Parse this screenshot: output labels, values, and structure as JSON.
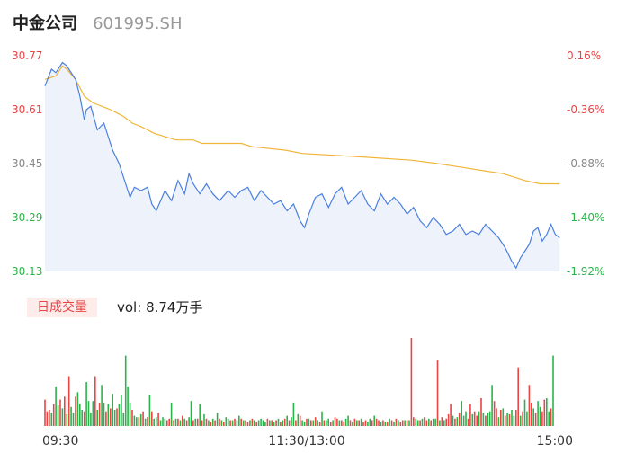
{
  "header": {
    "name": "中金公司",
    "code": "601995.SH"
  },
  "volume_panel": {
    "period_tab": "日成交量",
    "vol_label": "vol:",
    "vol_value": "8.74万手"
  },
  "colors": {
    "price_line": "#4a7fe0",
    "avg_line": "#f0b63a",
    "up": "#e84545",
    "down": "#2bb34a",
    "neutral": "#888888",
    "area": "#eef3fb"
  },
  "chart_data": [
    {
      "type": "line",
      "title": "",
      "y_ticks_left": [
        "30.77",
        "30.61",
        "30.45",
        "30.29",
        "30.13"
      ],
      "y_ticks_right": [
        "0.16%",
        "-0.36%",
        "-0.88%",
        "-1.40%",
        "-1.92%"
      ],
      "ylim": [
        30.13,
        30.77
      ],
      "x_ticks": [
        "09:30",
        "11:30/13:00",
        "15:00"
      ],
      "total_minutes": 241,
      "series": [
        {
          "key": "price",
          "points": [
            [
              0,
              30.68
            ],
            [
              3,
              30.73
            ],
            [
              5,
              30.72
            ],
            [
              8,
              30.75
            ],
            [
              10,
              30.74
            ],
            [
              12,
              30.72
            ],
            [
              14,
              30.7
            ],
            [
              16,
              30.65
            ],
            [
              18,
              30.58
            ],
            [
              19,
              30.61
            ],
            [
              21,
              30.62
            ],
            [
              24,
              30.55
            ],
            [
              27,
              30.57
            ],
            [
              29,
              30.53
            ],
            [
              31,
              30.49
            ],
            [
              34,
              30.45
            ],
            [
              37,
              30.39
            ],
            [
              39,
              30.35
            ],
            [
              41,
              30.38
            ],
            [
              44,
              30.37
            ],
            [
              47,
              30.38
            ],
            [
              49,
              30.33
            ],
            [
              51,
              30.31
            ],
            [
              55,
              30.37
            ],
            [
              58,
              30.34
            ],
            [
              61,
              30.4
            ],
            [
              64,
              30.36
            ],
            [
              66,
              30.42
            ],
            [
              68,
              30.39
            ],
            [
              71,
              30.36
            ],
            [
              74,
              30.39
            ],
            [
              77,
              30.36
            ],
            [
              80,
              30.34
            ],
            [
              84,
              30.37
            ],
            [
              87,
              30.35
            ],
            [
              90,
              30.37
            ],
            [
              93,
              30.38
            ],
            [
              96,
              30.34
            ],
            [
              99,
              30.37
            ],
            [
              102,
              30.35
            ],
            [
              105,
              30.33
            ],
            [
              108,
              30.34
            ],
            [
              111,
              30.31
            ],
            [
              114,
              30.33
            ],
            [
              117,
              30.28
            ],
            [
              119,
              30.26
            ],
            [
              121,
              30.3
            ],
            [
              124,
              30.35
            ],
            [
              127,
              30.36
            ],
            [
              130,
              30.32
            ],
            [
              133,
              30.36
            ],
            [
              136,
              30.38
            ],
            [
              139,
              30.33
            ],
            [
              142,
              30.35
            ],
            [
              145,
              30.37
            ],
            [
              148,
              30.33
            ],
            [
              151,
              30.31
            ],
            [
              154,
              30.36
            ],
            [
              157,
              30.33
            ],
            [
              160,
              30.35
            ],
            [
              163,
              30.33
            ],
            [
              166,
              30.3
            ],
            [
              169,
              30.32
            ],
            [
              172,
              30.28
            ],
            [
              175,
              30.26
            ],
            [
              178,
              30.29
            ],
            [
              181,
              30.27
            ],
            [
              184,
              30.24
            ],
            [
              187,
              30.25
            ],
            [
              190,
              30.27
            ],
            [
              193,
              30.24
            ],
            [
              196,
              30.25
            ],
            [
              199,
              30.24
            ],
            [
              202,
              30.27
            ],
            [
              205,
              30.25
            ],
            [
              208,
              30.23
            ],
            [
              211,
              30.2
            ],
            [
              214,
              30.16
            ],
            [
              216,
              30.14
            ],
            [
              218,
              30.17
            ],
            [
              220,
              30.19
            ],
            [
              222,
              30.21
            ],
            [
              224,
              30.25
            ],
            [
              226,
              30.26
            ],
            [
              228,
              30.22
            ],
            [
              230,
              30.24
            ],
            [
              232,
              30.27
            ],
            [
              234,
              30.24
            ],
            [
              236,
              30.23
            ]
          ]
        },
        {
          "key": "avg",
          "points": [
            [
              0,
              30.7
            ],
            [
              5,
              30.71
            ],
            [
              8,
              30.74
            ],
            [
              10,
              30.73
            ],
            [
              14,
              30.7
            ],
            [
              18,
              30.65
            ],
            [
              22,
              30.63
            ],
            [
              26,
              30.62
            ],
            [
              30,
              30.61
            ],
            [
              33,
              30.6
            ],
            [
              36,
              30.59
            ],
            [
              40,
              30.57
            ],
            [
              44,
              30.56
            ],
            [
              50,
              30.54
            ],
            [
              60,
              30.52
            ],
            [
              68,
              30.52
            ],
            [
              72,
              30.51
            ],
            [
              90,
              30.51
            ],
            [
              95,
              30.5
            ],
            [
              110,
              30.49
            ],
            [
              118,
              30.48
            ],
            [
              145,
              30.47
            ],
            [
              168,
              30.46
            ],
            [
              180,
              30.45
            ],
            [
              190,
              30.44
            ],
            [
              200,
              30.43
            ],
            [
              210,
              30.42
            ],
            [
              220,
              30.4
            ],
            [
              227,
              30.39
            ],
            [
              236,
              30.39
            ]
          ]
        }
      ]
    },
    {
      "type": "bar",
      "title": "",
      "minutes": [
        0,
        1,
        2,
        3,
        4,
        5,
        6,
        7,
        8,
        9,
        10,
        11,
        12,
        13,
        14,
        15,
        16,
        17,
        18,
        19,
        20,
        21,
        22,
        23,
        24,
        25,
        26,
        27,
        28,
        29,
        30,
        31,
        32,
        33,
        34,
        35,
        36,
        37,
        38,
        39,
        40,
        41,
        42,
        43,
        44,
        45,
        46,
        47,
        48,
        49,
        50,
        51,
        52,
        53,
        54,
        55,
        56,
        57,
        58,
        59,
        60,
        61,
        62,
        63,
        64,
        65,
        66,
        67,
        68,
        69,
        70,
        71,
        72,
        73,
        74,
        75,
        76,
        77,
        78,
        79,
        80,
        81,
        82,
        83,
        84,
        85,
        86,
        87,
        88,
        89,
        90,
        91,
        92,
        93,
        94,
        95,
        96,
        97,
        98,
        99,
        100,
        101,
        102,
        103,
        104,
        105,
        106,
        107,
        108,
        109,
        110,
        111,
        112,
        113,
        114,
        115,
        116,
        117,
        118,
        119,
        120,
        121,
        122,
        123,
        124,
        125,
        126,
        127,
        128,
        129,
        130,
        131,
        132,
        133,
        134,
        135,
        136,
        137,
        138,
        139,
        140,
        141,
        142,
        143,
        144,
        145,
        146,
        147,
        148,
        149,
        150,
        151,
        152,
        153,
        154,
        155,
        156,
        157,
        158,
        159,
        160,
        161,
        162,
        163,
        164,
        165,
        166,
        167,
        168,
        169,
        170,
        171,
        172,
        173,
        174,
        175,
        176,
        177,
        178,
        179,
        180,
        181,
        182,
        183,
        184,
        185,
        186,
        187,
        188,
        189,
        190,
        191,
        192,
        193,
        194,
        195,
        196,
        197,
        198,
        199,
        200,
        201,
        202,
        203,
        204,
        205,
        206,
        207,
        208,
        209,
        210,
        211,
        212,
        213,
        214,
        215,
        216,
        217,
        218,
        219,
        220,
        221,
        222,
        223,
        224,
        225,
        226,
        227,
        228,
        229,
        230,
        231,
        232,
        233,
        234,
        235,
        236
      ],
      "values": [
        36,
        20,
        22,
        18,
        30,
        54,
        28,
        36,
        24,
        40,
        16,
        68,
        26,
        18,
        40,
        46,
        30,
        22,
        20,
        60,
        34,
        18,
        34,
        68,
        22,
        32,
        56,
        32,
        20,
        30,
        24,
        44,
        22,
        24,
        30,
        42,
        18,
        96,
        54,
        32,
        22,
        14,
        12,
        12,
        16,
        20,
        10,
        12,
        42,
        20,
        10,
        12,
        18,
        8,
        12,
        10,
        8,
        10,
        32,
        8,
        10,
        10,
        8,
        14,
        10,
        8,
        12,
        34,
        8,
        10,
        10,
        30,
        8,
        16,
        10,
        8,
        6,
        10,
        8,
        18,
        10,
        8,
        6,
        12,
        10,
        8,
        8,
        10,
        8,
        14,
        10,
        8,
        8,
        6,
        8,
        10,
        8,
        6,
        8,
        10,
        8,
        6,
        10,
        8,
        8,
        6,
        8,
        10,
        6,
        8,
        10,
        14,
        8,
        12,
        32,
        8,
        16,
        14,
        8,
        6,
        10,
        10,
        8,
        8,
        12,
        8,
        6,
        20,
        8,
        8,
        10,
        6,
        8,
        12,
        10,
        8,
        8,
        6,
        10,
        14,
        8,
        6,
        10,
        8,
        8,
        10,
        6,
        8,
        6,
        10,
        8,
        14,
        10,
        8,
        6,
        8,
        6,
        6,
        10,
        8,
        6,
        10,
        8,
        6,
        8,
        8,
        8,
        8,
        120,
        12,
        10,
        8,
        8,
        10,
        12,
        8,
        10,
        8,
        10,
        10,
        90,
        8,
        12,
        8,
        10,
        16,
        30,
        14,
        10,
        12,
        18,
        34,
        14,
        20,
        10,
        30,
        16,
        20,
        14,
        20,
        38,
        18,
        14,
        18,
        20,
        56,
        34,
        24,
        12,
        22,
        24,
        14,
        18,
        16,
        22,
        14,
        22,
        80,
        14,
        20,
        36,
        20,
        56,
        32,
        24,
        18,
        34,
        26,
        20,
        36,
        38,
        20,
        24,
        96
      ],
      "colors": [
        "r",
        "r",
        "r",
        "g",
        "r",
        "g",
        "g",
        "r",
        "g",
        "r",
        "g",
        "r",
        "g",
        "g",
        "r",
        "g",
        "g",
        "g",
        "r",
        "g",
        "g",
        "g",
        "g",
        "r",
        "g",
        "r",
        "g",
        "g",
        "r",
        "g",
        "r",
        "g",
        "g",
        "r",
        "g",
        "g",
        "g",
        "g",
        "g",
        "g",
        "r",
        "g",
        "g",
        "r",
        "g",
        "r",
        "g",
        "r",
        "g",
        "r",
        "g",
        "g",
        "r",
        "g",
        "g",
        "g",
        "r",
        "r",
        "g",
        "r",
        "g",
        "r",
        "g",
        "r",
        "g",
        "r",
        "g",
        "g",
        "r",
        "g",
        "r",
        "g",
        "r",
        "g",
        "r",
        "g",
        "r",
        "g",
        "r",
        "g",
        "r",
        "g",
        "r",
        "g",
        "g",
        "r",
        "g",
        "r",
        "g",
        "g",
        "r",
        "g",
        "r",
        "r",
        "g",
        "r",
        "g",
        "r",
        "g",
        "g",
        "g",
        "g",
        "r",
        "g",
        "r",
        "g",
        "r",
        "g",
        "r",
        "g",
        "r",
        "g",
        "r",
        "g",
        "g",
        "r",
        "g",
        "r",
        "g",
        "g",
        "r",
        "g",
        "r",
        "g",
        "r",
        "g",
        "r",
        "g",
        "r",
        "g",
        "g",
        "r",
        "g",
        "r",
        "r",
        "g",
        "r",
        "r",
        "g",
        "g",
        "r",
        "g",
        "r",
        "g",
        "r",
        "g",
        "r",
        "r",
        "g",
        "g",
        "r",
        "g",
        "r",
        "r",
        "g",
        "r",
        "g",
        "r",
        "g",
        "r",
        "g",
        "r",
        "g",
        "r",
        "r",
        "g",
        "r",
        "g",
        "r",
        "r",
        "g",
        "g",
        "r",
        "g",
        "r",
        "r",
        "g",
        "r",
        "g",
        "g",
        "r",
        "g",
        "r",
        "g",
        "r",
        "r",
        "r",
        "g",
        "r",
        "g",
        "r",
        "g",
        "g",
        "g",
        "r",
        "r",
        "g",
        "r",
        "r",
        "g",
        "r",
        "g",
        "r",
        "g",
        "g",
        "g",
        "r",
        "r",
        "g",
        "r",
        "g",
        "r",
        "g",
        "r",
        "g",
        "g",
        "r",
        "r",
        "g",
        "r",
        "g",
        "g",
        "r",
        "r",
        "g",
        "r",
        "g",
        "g",
        "r",
        "r",
        "g",
        "g",
        "r",
        "g",
        "r",
        "g"
      ]
    }
  ]
}
